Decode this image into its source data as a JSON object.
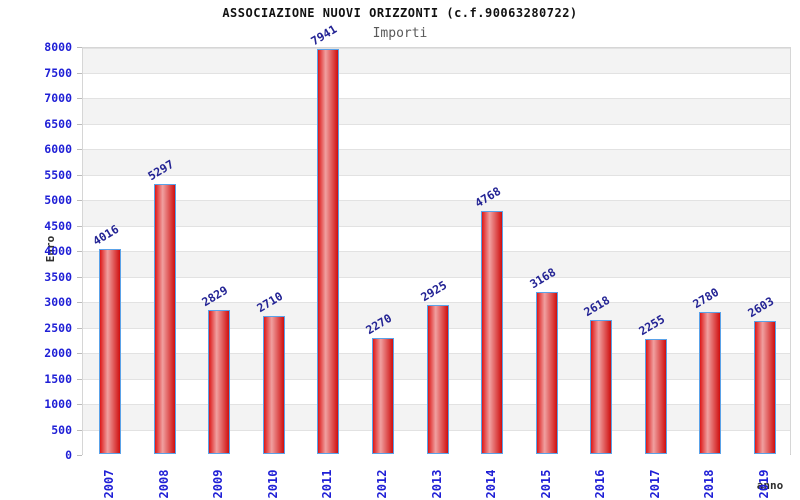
{
  "chart_data": {
    "type": "bar",
    "title": "ASSOCIAZIONE NUOVI ORIZZONTI (c.f.90063280722)",
    "subtitle": "Importi",
    "xlabel": "anno",
    "ylabel": "Euro",
    "categories": [
      "2007",
      "2008",
      "2009",
      "2010",
      "2011",
      "2012",
      "2013",
      "2014",
      "2015",
      "2016",
      "2017",
      "2018",
      "2019"
    ],
    "values": [
      4016,
      5297,
      2829,
      2710,
      7941,
      2270,
      2925,
      4768,
      3168,
      2618,
      2255,
      2780,
      2603
    ],
    "ylim": [
      0,
      8000
    ],
    "ytick_step": 500,
    "yticks": [
      0,
      500,
      1000,
      1500,
      2000,
      2500,
      3000,
      3500,
      4000,
      4500,
      5000,
      5500,
      6000,
      6500,
      7000,
      7500,
      8000
    ],
    "grid": true,
    "legend_position": "none",
    "colors": {
      "bar_dark": "#dd1717",
      "bar_edge_dark": "#cf0f0f",
      "bar_light": "#f0a0a0",
      "bar_border": "#5aa2e8",
      "value_label": "#232394",
      "tick_label": "#1f1fd6",
      "axis_title": "#2e2e2e",
      "band_gray": "#f3f3f3",
      "band_white": "#ffffff",
      "gridline": "#e2e2e2",
      "tick_mark": "#bbbbbb",
      "title": "#111111",
      "subtitle": "#5a5a5a"
    }
  }
}
